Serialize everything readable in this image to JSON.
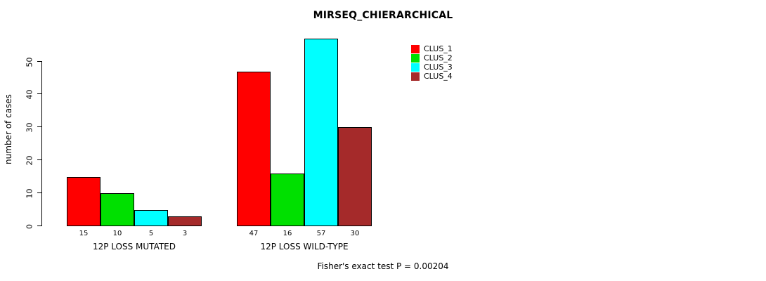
{
  "chart_data": {
    "type": "bar",
    "title": "MIRSEQ_CHIERARCHICAL",
    "ylabel": "number of cases",
    "footnote": "Fisher's exact test P = 0.00204",
    "groups": [
      "12P LOSS MUTATED",
      "12P LOSS WILD-TYPE"
    ],
    "series": [
      {
        "name": "CLUS_1",
        "color": "#FF0000",
        "values": [
          15,
          47
        ]
      },
      {
        "name": "CLUS_2",
        "color": "#00E000",
        "values": [
          10,
          16
        ]
      },
      {
        "name": "CLUS_3",
        "color": "#00FFFF",
        "values": [
          5,
          57
        ]
      },
      {
        "name": "CLUS_4",
        "color": "#A52A2A",
        "values": [
          3,
          30
        ]
      }
    ],
    "yticks": [
      0,
      10,
      20,
      30,
      40,
      50
    ],
    "ylim": [
      0,
      58
    ],
    "legend_position": "top-right",
    "grid": false
  }
}
